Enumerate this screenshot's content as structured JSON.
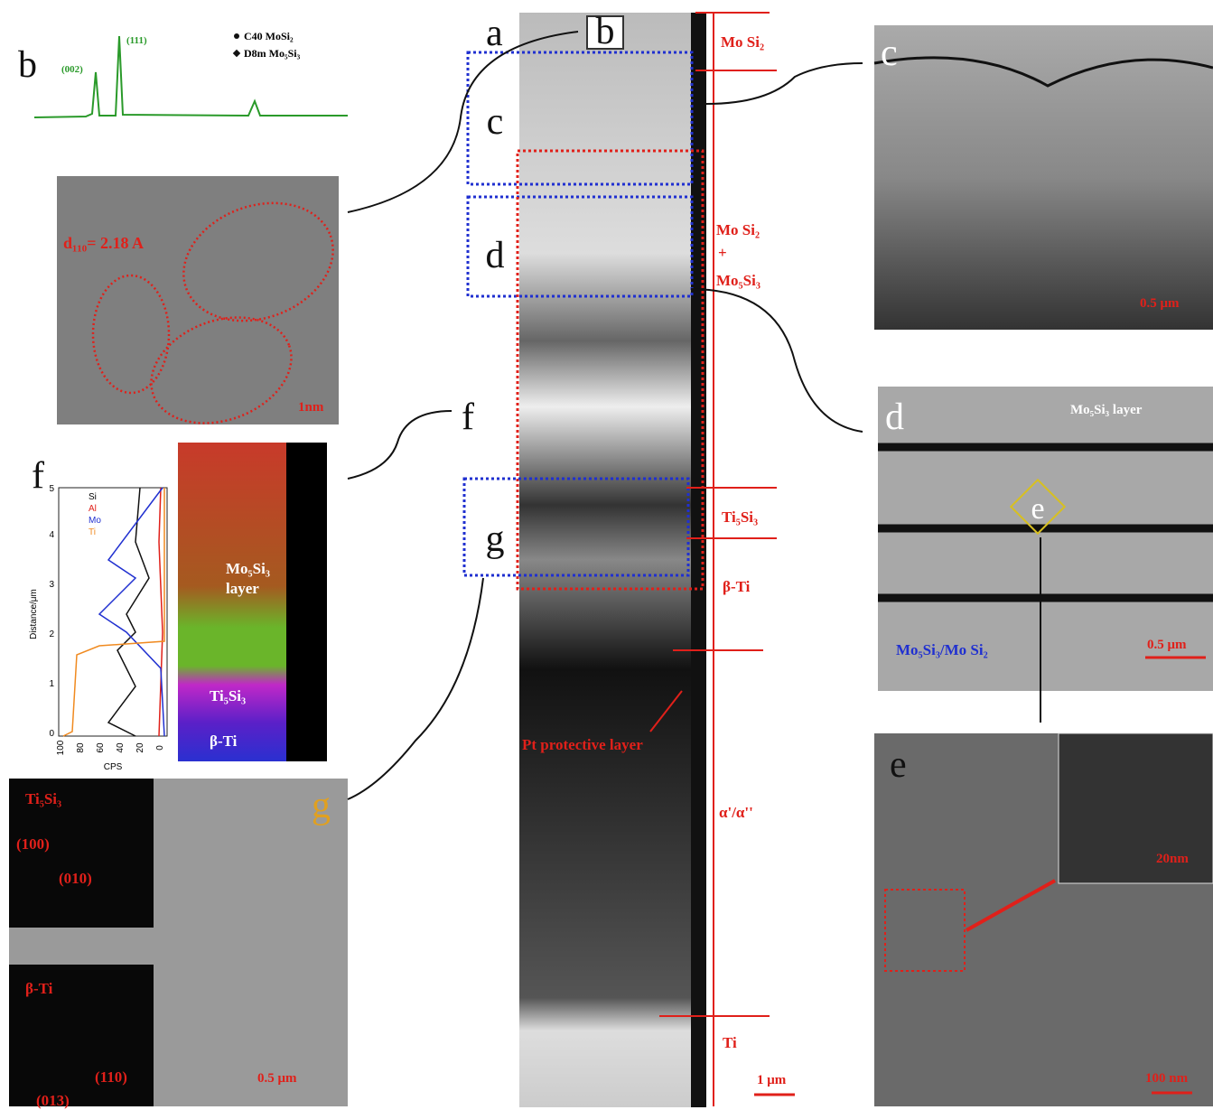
{
  "panel_a": {
    "label": "a",
    "inset_label": "b",
    "box_labels": [
      "c",
      "d",
      "f",
      "g"
    ],
    "layers": [
      "Mo Si₂",
      "Mo Si₂",
      "+",
      "Mo₅Si₃",
      "Ti₅Si₃",
      "β-Ti",
      "α'/α''",
      "Ti"
    ],
    "annotation": "Pt protective layer",
    "scale_bar": "1 μm"
  },
  "panel_b": {
    "label": "b",
    "peaks": [
      "(111)",
      "(002)"
    ],
    "legend": [
      "C40  MoSi₂",
      "D8m Mo₅Si₃"
    ],
    "d_spacing": "d₁₁₀= 2.18 A",
    "scale_bar": "1nm"
  },
  "panel_c": {
    "label": "c",
    "scale_bar": "0.5 μm"
  },
  "panel_d": {
    "label": "d",
    "annotations": [
      "Mo₅Si₃ layer",
      "Mo₅Si₃/Mo Si₂"
    ],
    "inset_label": "e",
    "scale_bar": "0.5 μm"
  },
  "panel_e": {
    "label": "e",
    "inset_scale_bar": "20nm",
    "scale_bar": "100 nm"
  },
  "panel_f": {
    "label": "f",
    "legend": [
      "Si",
      "Al",
      "Mo",
      "Ti"
    ],
    "y_axis": "Distance/μm",
    "yticks": [
      0,
      1,
      2,
      3,
      4,
      5
    ],
    "x_axis": "CPS",
    "xticks": [
      100,
      80,
      60,
      40,
      20,
      0
    ],
    "map_labels": [
      "Mo₅Si₃",
      "layer",
      "Ti₅Si₃",
      "β-Ti"
    ]
  },
  "panel_g": {
    "label": "g",
    "patterns": [
      {
        "phase": "Ti₅Si₃",
        "indices": [
          "(100)",
          "(010)"
        ]
      },
      {
        "phase": "β-Ti",
        "indices": [
          "(110)",
          "(013)"
        ]
      }
    ],
    "scale_bar": "0.5 μm"
  }
}
